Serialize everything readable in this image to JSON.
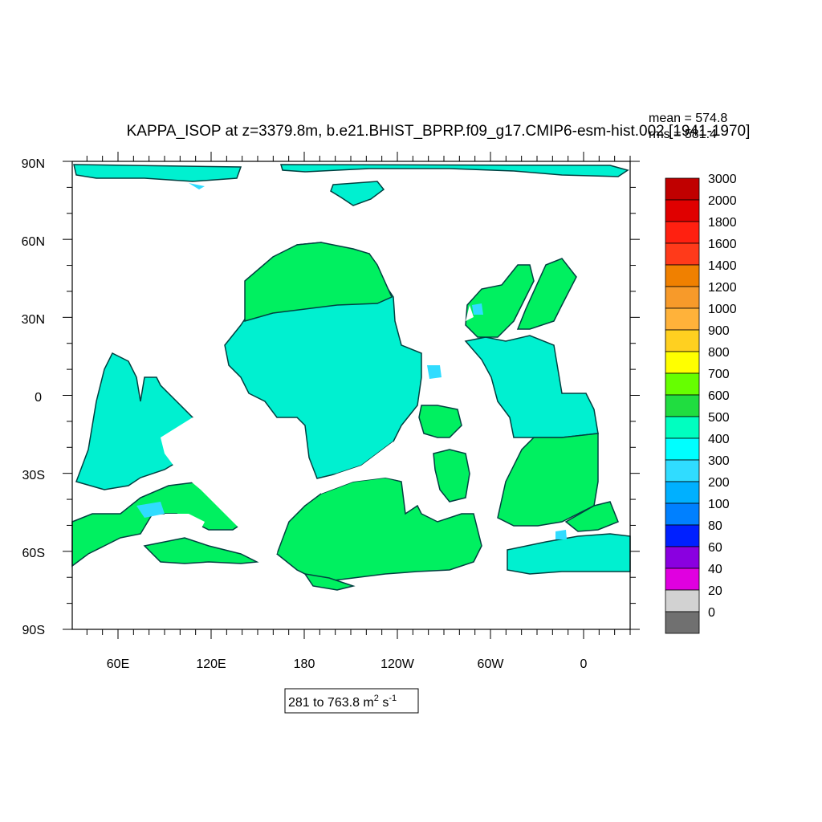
{
  "title": "KAPPA_ISOP at z=3379.8m, b.e21.BHIST_BPRP.f09_g17.CMIP6-esm-hist.002 [1941-1970]",
  "stats": {
    "mean": "mean = 574.8",
    "rms": "rms = 581.4"
  },
  "range_label": {
    "text": "281 to 763.8 m",
    "sup1": "2",
    "mid": " s",
    "sup2": "-1"
  },
  "axes": {
    "y_ticks": [
      "90N",
      "60N",
      "30N",
      "0",
      "30S",
      "60S",
      "90S"
    ],
    "x_ticks": [
      "60E",
      "120E",
      "180",
      "120W",
      "60W",
      "0"
    ]
  },
  "colorbar": {
    "labels": [
      "3000",
      "2000",
      "1800",
      "1600",
      "1400",
      "1200",
      "1000",
      "900",
      "800",
      "700",
      "600",
      "500",
      "400",
      "300",
      "200",
      "100",
      "80",
      "60",
      "40",
      "20",
      "0"
    ],
    "colors": [
      "#c00000",
      "#e00000",
      "#ff2010",
      "#ff3a1a",
      "#f08000",
      "#f79a2a",
      "#ffb23a",
      "#ffd020",
      "#ffff00",
      "#66ff00",
      "#20dd40",
      "#00ffc0",
      "#00ffff",
      "#30dcff",
      "#00b0ff",
      "#0080ff",
      "#0020ff",
      "#8a00e0",
      "#e000e0",
      "#d2d2d2",
      "#707070"
    ]
  },
  "map_colors": {
    "level_500_600": "#00f0d0",
    "level_600_700": "#00f060",
    "level_400_500": "#30dcff",
    "contour": "#004040"
  }
}
